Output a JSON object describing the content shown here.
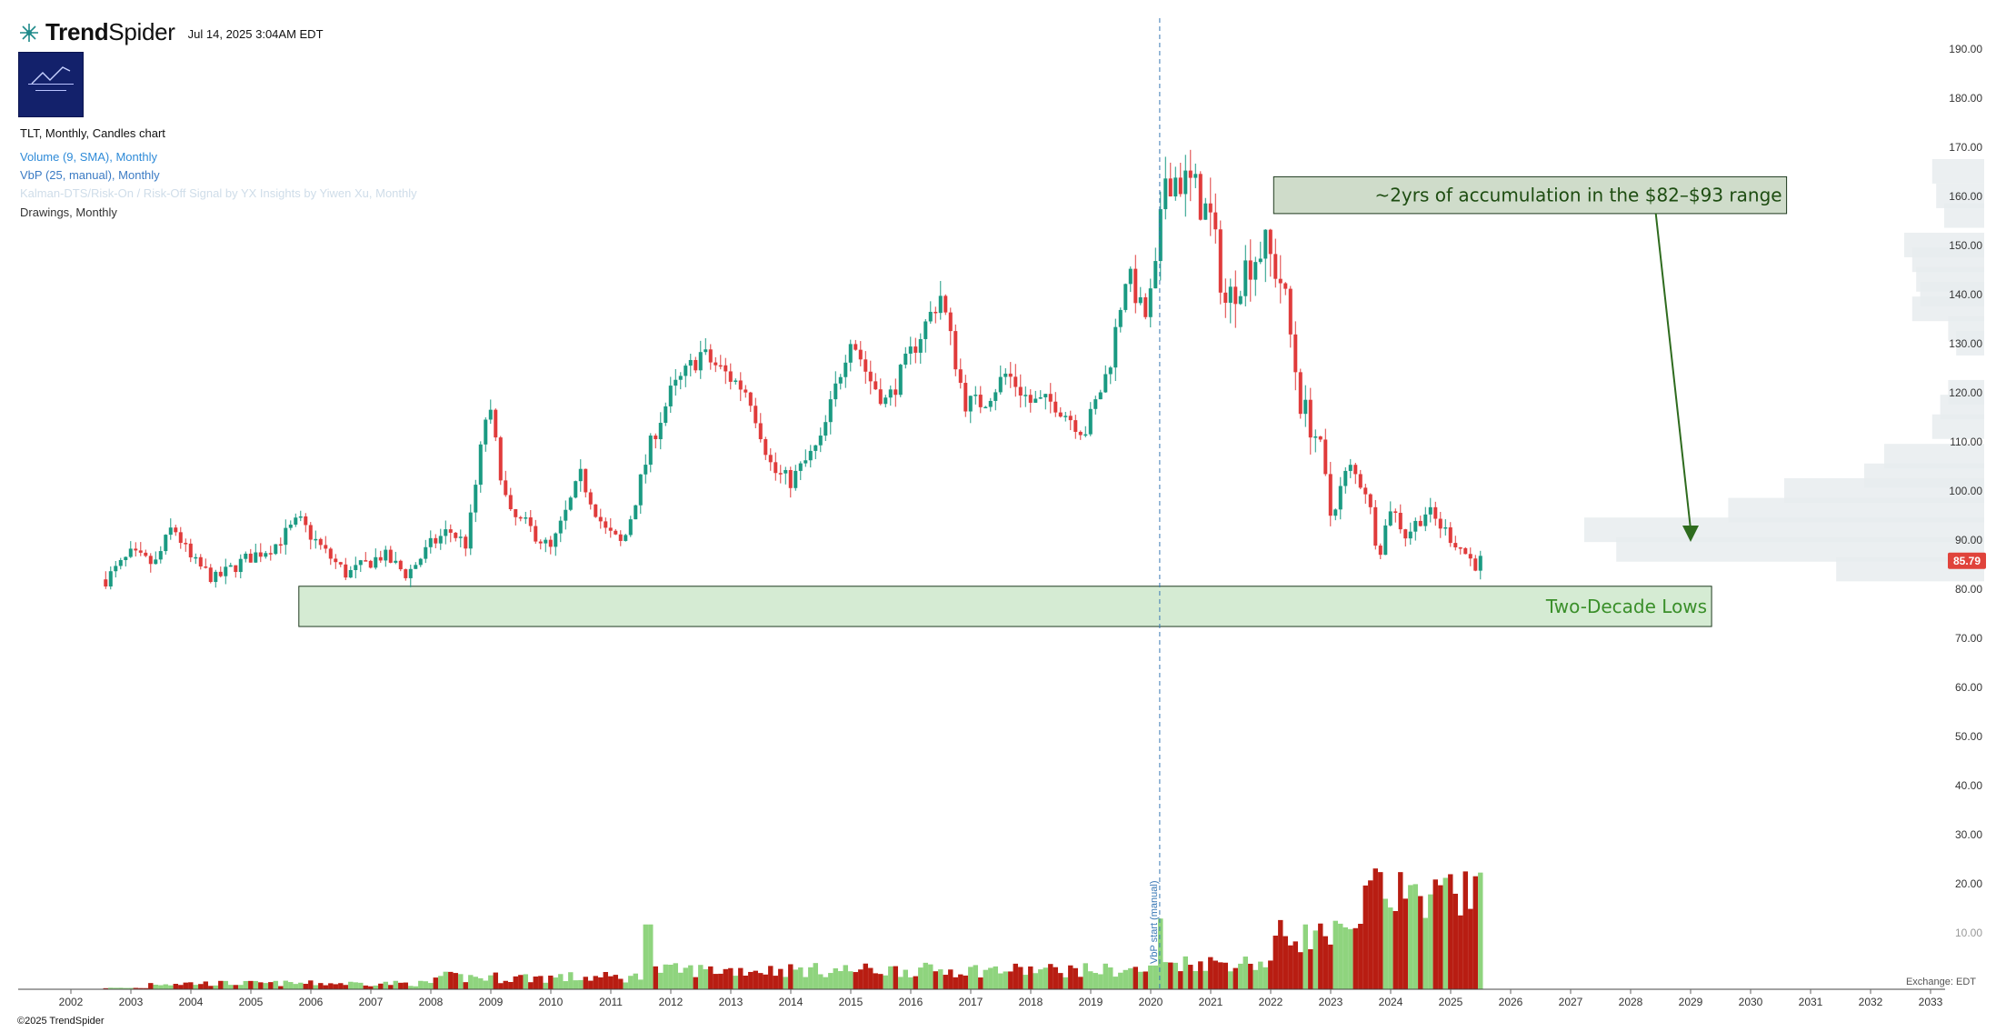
{
  "header": {
    "brand_prefix": "Trend",
    "brand_suffix": "Spider",
    "timestamp": "Jul 14, 2025 3:04AM EDT"
  },
  "legend": {
    "chart_title": "TLT, Monthly, Candles chart",
    "volume": "Volume (9, SMA), Monthly",
    "vbp": "VbP (25, manual), Monthly",
    "faded_indicator": "Kalman-DTS/Risk-On / Risk-Off Signal by YX Insights by Yiwen Xu, Monthly",
    "drawings": "Drawings, Monthly"
  },
  "footer": {
    "copyright": "©2025 TrendSpider"
  },
  "chart_data": {
    "type": "candlestick",
    "symbol": "TLT",
    "timeframe": "Monthly",
    "x_ticks": [
      "2002",
      "2003",
      "2004",
      "2005",
      "2006",
      "2007",
      "2008",
      "2009",
      "2010",
      "2011",
      "2012",
      "2013",
      "2014",
      "2015",
      "2016",
      "2017",
      "2018",
      "2019",
      "2020",
      "2021",
      "2022",
      "2023",
      "2024",
      "2025",
      "2026",
      "2027",
      "2028",
      "2029",
      "2030",
      "2031",
      "2032",
      "2033"
    ],
    "y_ticks": [
      10,
      20,
      30,
      40,
      50,
      60,
      70,
      80,
      90,
      100,
      110,
      120,
      130,
      140,
      150,
      160,
      170,
      180,
      190
    ],
    "y_tick_labels": [
      "10.00",
      "20.00",
      "30.00",
      "40.00",
      "50.00",
      "60.00",
      "70.00",
      "80.00",
      "90.00",
      "100.00",
      "110.00",
      "120.00",
      "130.00",
      "140.00",
      "150.00",
      "160.00",
      "170.00",
      "180.00",
      "190.00"
    ],
    "ylim": [
      7,
      197
    ],
    "xlim": [
      2001.76,
      2033.7
    ],
    "last_price": 85.79,
    "last_price_label": "85.79",
    "close_path": [
      [
        2002.58,
        82
      ],
      [
        2003.0,
        87
      ],
      [
        2003.4,
        85
      ],
      [
        2003.7,
        93
      ],
      [
        2004.0,
        86
      ],
      [
        2004.4,
        82
      ],
      [
        2004.9,
        86
      ],
      [
        2005.4,
        89
      ],
      [
        2005.8,
        94
      ],
      [
        2006.2,
        88
      ],
      [
        2006.6,
        83
      ],
      [
        2007.2,
        87
      ],
      [
        2007.6,
        83
      ],
      [
        2008.0,
        89
      ],
      [
        2008.3,
        92
      ],
      [
        2008.6,
        89
      ],
      [
        2008.95,
        118
      ],
      [
        2009.3,
        95
      ],
      [
        2009.6,
        93
      ],
      [
        2010.0,
        88
      ],
      [
        2010.5,
        103
      ],
      [
        2010.9,
        92
      ],
      [
        2011.2,
        89
      ],
      [
        2011.7,
        111
      ],
      [
        2012.0,
        120
      ],
      [
        2012.5,
        128
      ],
      [
        2012.9,
        124
      ],
      [
        2013.3,
        120
      ],
      [
        2013.7,
        104
      ],
      [
        2014.0,
        102
      ],
      [
        2014.5,
        110
      ],
      [
        2015.0,
        132
      ],
      [
        2015.3,
        123
      ],
      [
        2015.6,
        118
      ],
      [
        2016.0,
        128
      ],
      [
        2016.5,
        140
      ],
      [
        2016.9,
        118
      ],
      [
        2017.2,
        118
      ],
      [
        2017.6,
        124
      ],
      [
        2018.0,
        118
      ],
      [
        2018.4,
        118
      ],
      [
        2018.9,
        112
      ],
      [
        2019.3,
        125
      ],
      [
        2019.6,
        145
      ],
      [
        2019.9,
        135
      ],
      [
        2020.1,
        145
      ],
      [
        2020.25,
        165
      ],
      [
        2020.7,
        162
      ],
      [
        2021.0,
        155
      ],
      [
        2021.25,
        138
      ],
      [
        2021.6,
        146
      ],
      [
        2021.9,
        150
      ],
      [
        2022.2,
        142
      ],
      [
        2022.5,
        118
      ],
      [
        2022.8,
        110
      ],
      [
        2023.0,
        95
      ],
      [
        2023.3,
        105
      ],
      [
        2023.6,
        100
      ],
      [
        2023.8,
        87
      ],
      [
        2024.0,
        97
      ],
      [
        2024.25,
        91
      ],
      [
        2024.6,
        96
      ],
      [
        2024.9,
        92
      ],
      [
        2025.2,
        88
      ],
      [
        2025.4,
        85
      ],
      [
        2025.5,
        85.79
      ]
    ],
    "volume_axis_labels": [
      "10.00",
      "20.00",
      "30.00",
      "40.00"
    ],
    "volume_profile": [
      {
        "price": 165,
        "width": 0.13
      },
      {
        "price": 160,
        "width": 0.12
      },
      {
        "price": 156,
        "width": 0.1
      },
      {
        "price": 150,
        "width": 0.2
      },
      {
        "price": 147,
        "width": 0.18
      },
      {
        "price": 143,
        "width": 0.17
      },
      {
        "price": 140,
        "width": 0.16
      },
      {
        "price": 137,
        "width": 0.18
      },
      {
        "price": 133,
        "width": 0.09
      },
      {
        "price": 130,
        "width": 0.07
      },
      {
        "price": 120,
        "width": 0.09
      },
      {
        "price": 117,
        "width": 0.11
      },
      {
        "price": 113,
        "width": 0.13
      },
      {
        "price": 107,
        "width": 0.25
      },
      {
        "price": 103,
        "width": 0.3
      },
      {
        "price": 100,
        "width": 0.5
      },
      {
        "price": 96,
        "width": 0.64
      },
      {
        "price": 92,
        "width": 1.0
      },
      {
        "price": 88,
        "width": 0.92
      },
      {
        "price": 84,
        "width": 0.37
      }
    ],
    "vbp_start_label": "VbP start (manual)",
    "vbp_start_x": 2020.15,
    "exchange_label": "Exchange: EDT",
    "annotations": [
      {
        "text": "~2yrs of accumulation in the $82–$93 range",
        "x0": 2022.05,
        "x1": 2030.6,
        "y0": 164,
        "y1": 156.5
      },
      {
        "text": "Two-Decade Lows",
        "x0": 2005.8,
        "x1": 2029.35,
        "y0": 80.6,
        "y1": 72.4
      }
    ],
    "arrow": {
      "from": [
        2028.42,
        156.5
      ],
      "to": [
        2029.0,
        90
      ]
    }
  }
}
